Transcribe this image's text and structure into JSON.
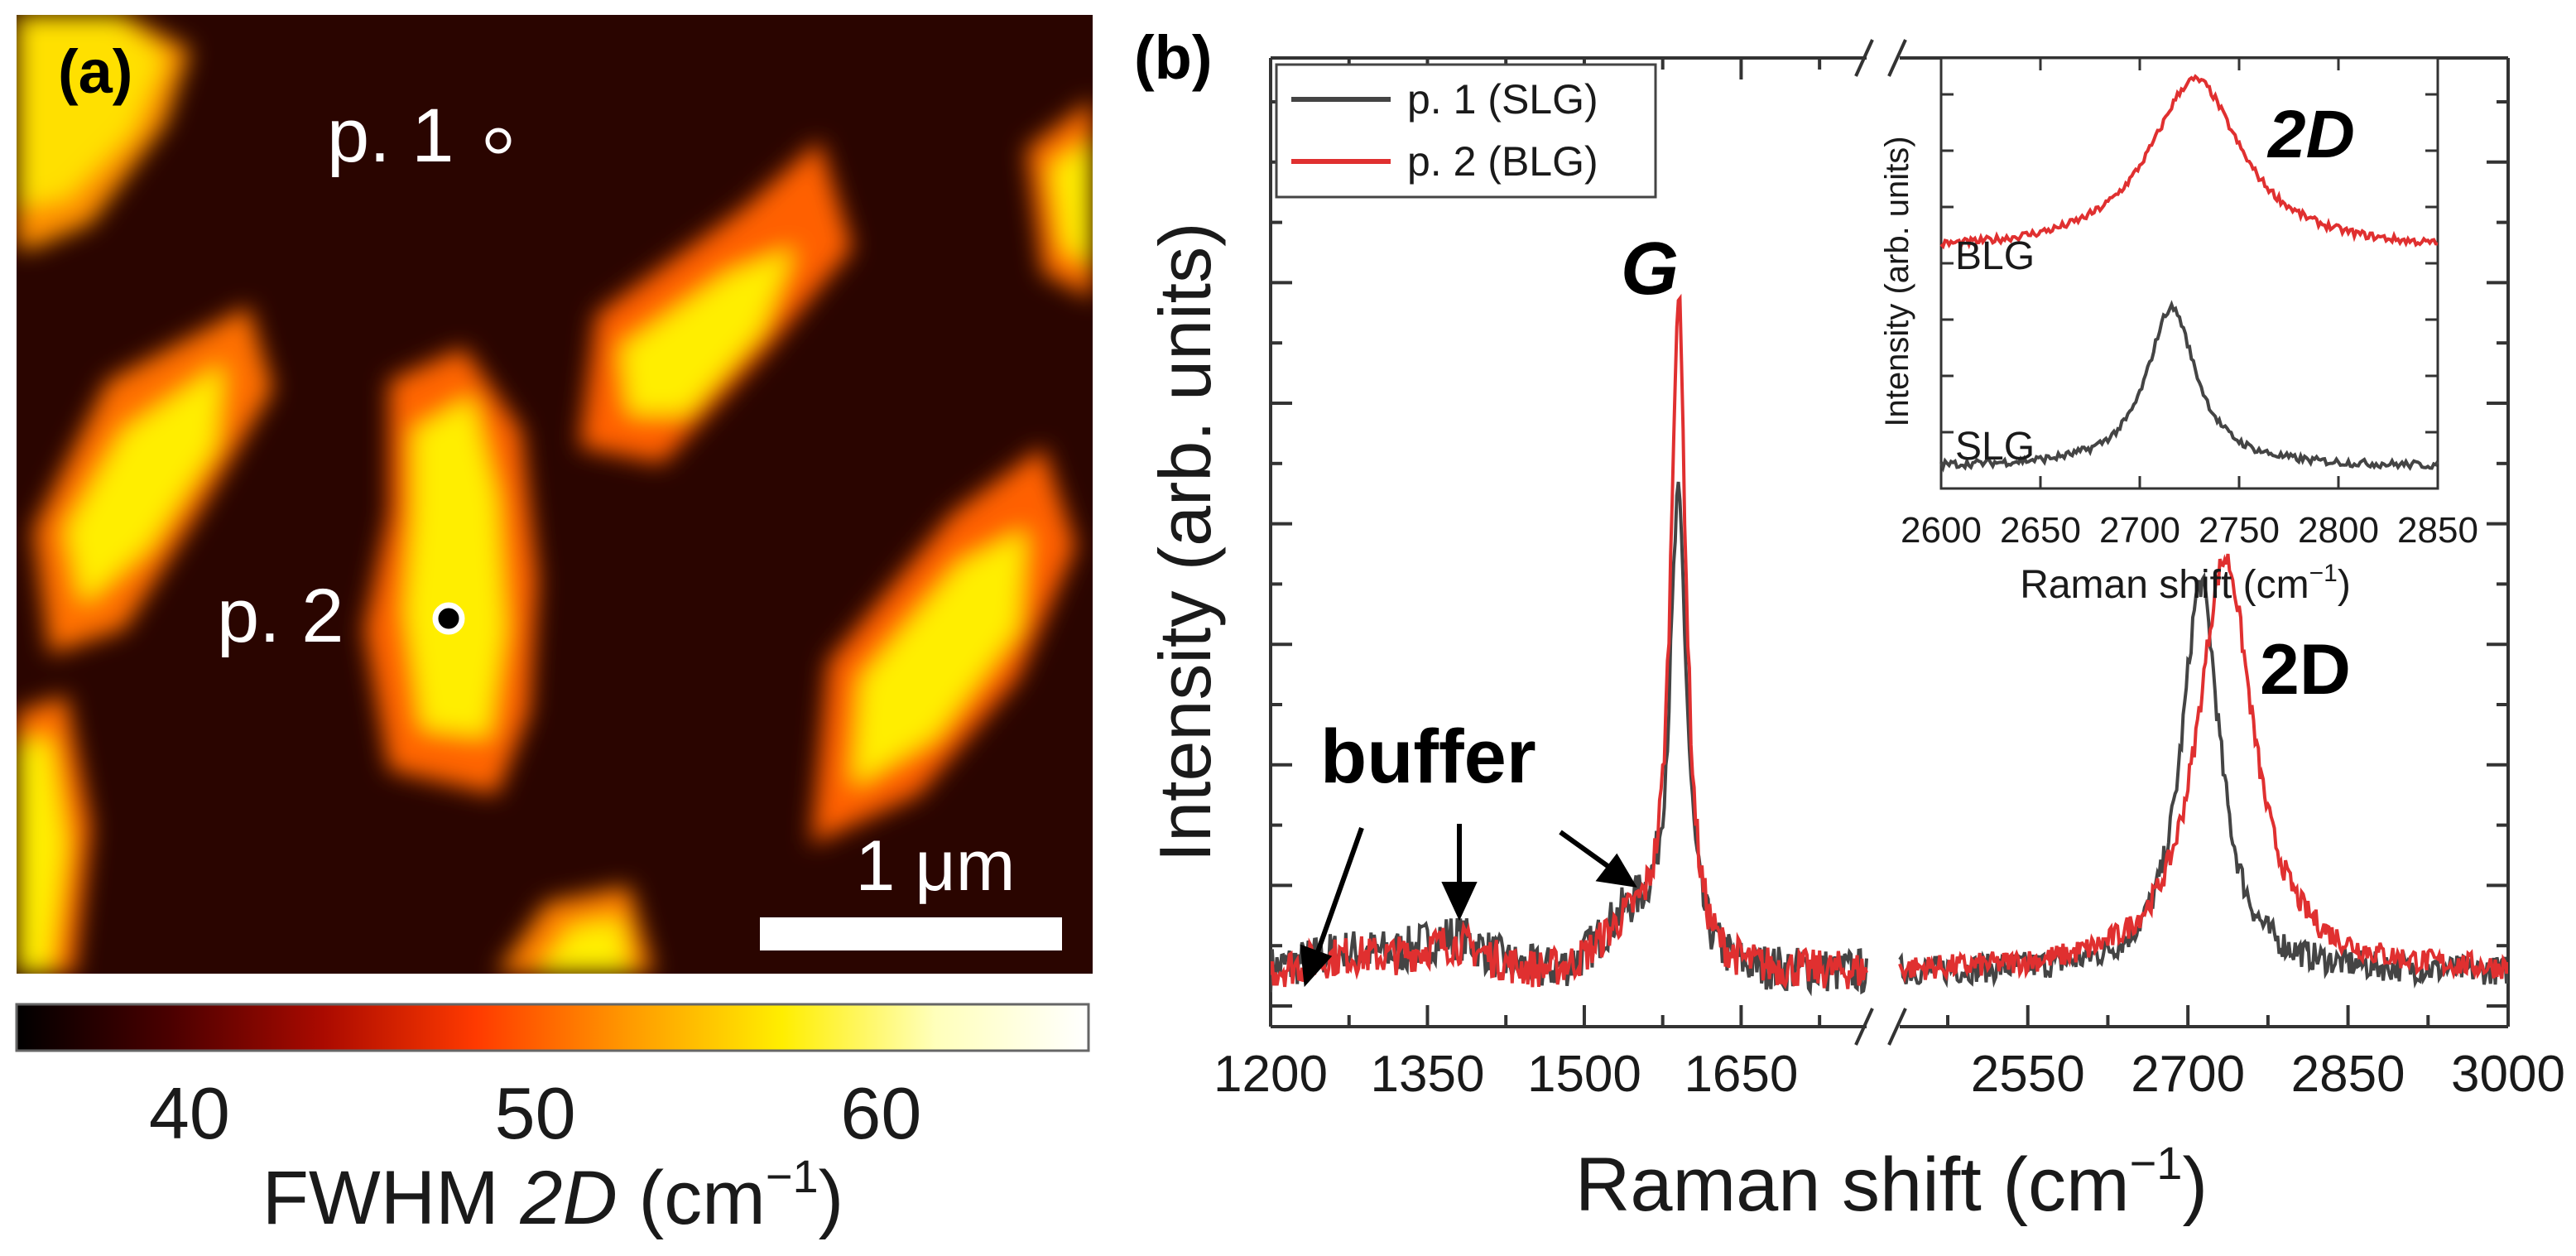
{
  "chart_data": [
    {
      "type": "heatmap",
      "panel_label": "(a)",
      "title": "",
      "points": [
        {
          "label": "p. 1",
          "marker": "hollow"
        },
        {
          "label": "p. 2",
          "marker": "filled"
        }
      ],
      "scale_bar_label": "1 μm",
      "colorbar": {
        "min": 35,
        "max": 66,
        "ticks": [
          40,
          50,
          60
        ],
        "tick_labels": [
          "40",
          "50",
          "60"
        ],
        "label_prefix": "FWHM ",
        "label_italic": "2D",
        "label_unit": " (cm",
        "label_sup": "−1",
        "label_close": ")",
        "colors": [
          "#000000",
          "#4a0000",
          "#aa0a00",
          "#ff3a00",
          "#ff9a00",
          "#ffee00",
          "#ffffbb",
          "#ffffff"
        ]
      },
      "colors": {
        "background": "#2a0500",
        "high": "#ffe600"
      }
    },
    {
      "type": "line",
      "panel_label": "(b)",
      "title": "",
      "xlabel": "Raman shift (cm",
      "xlabel_sup": "−1",
      "xlabel_close": ")",
      "ylabel": "Intensity (arb. units)",
      "x_segments": [
        [
          1200,
          1770
        ],
        [
          2430,
          3000
        ]
      ],
      "xticks": [
        1200,
        1350,
        1500,
        1650,
        2550,
        2700,
        2850,
        3000
      ],
      "xtick_labels": [
        "1200",
        "1350",
        "1500",
        "1650",
        "2550",
        "2700",
        "2850",
        "3000"
      ],
      "ylim": [
        0,
        1.0
      ],
      "legend": [
        {
          "name": "p. 1 (SLG)",
          "color": "#444444"
        },
        {
          "name": "p. 2 (BLG)",
          "color": "#e03030"
        }
      ],
      "annotations": {
        "G": "G",
        "twoD": "2D",
        "buffer": "buffer"
      },
      "series": [
        {
          "name": "p. 1 (SLG)",
          "color": "#444444",
          "peaks": [
            {
              "x": 1590,
              "height": 0.55,
              "width": 10
            },
            {
              "x": 2712,
              "height": 0.47,
              "width": 22
            }
          ],
          "baseline": 0.04
        },
        {
          "name": "p. 2 (BLG)",
          "color": "#e03030",
          "peaks": [
            {
              "x": 1590,
              "height": 0.8,
              "width": 9
            },
            {
              "x": 2735,
              "height": 0.5,
              "width": 32
            }
          ],
          "baseline": 0.04
        }
      ]
    },
    {
      "type": "line",
      "title": "",
      "xlabel": "Raman shift (cm",
      "xlabel_sup": "−1",
      "xlabel_close": ")",
      "ylabel": "Intensity (arb. units)",
      "xlim": [
        2600,
        2850
      ],
      "xticks": [
        2600,
        2650,
        2700,
        2750,
        2800,
        2850
      ],
      "xtick_labels": [
        "2600",
        "2650",
        "2700",
        "2750",
        "2800",
        "2850"
      ],
      "annotation": "2D",
      "series": [
        {
          "name": "BLG",
          "color": "#e03030",
          "offset": 0.55,
          "peak": 2728,
          "height": 0.4,
          "width": 28
        },
        {
          "name": "SLG",
          "color": "#444444",
          "offset": 0.05,
          "peak": 2716,
          "height": 0.37,
          "width": 15
        }
      ]
    }
  ]
}
